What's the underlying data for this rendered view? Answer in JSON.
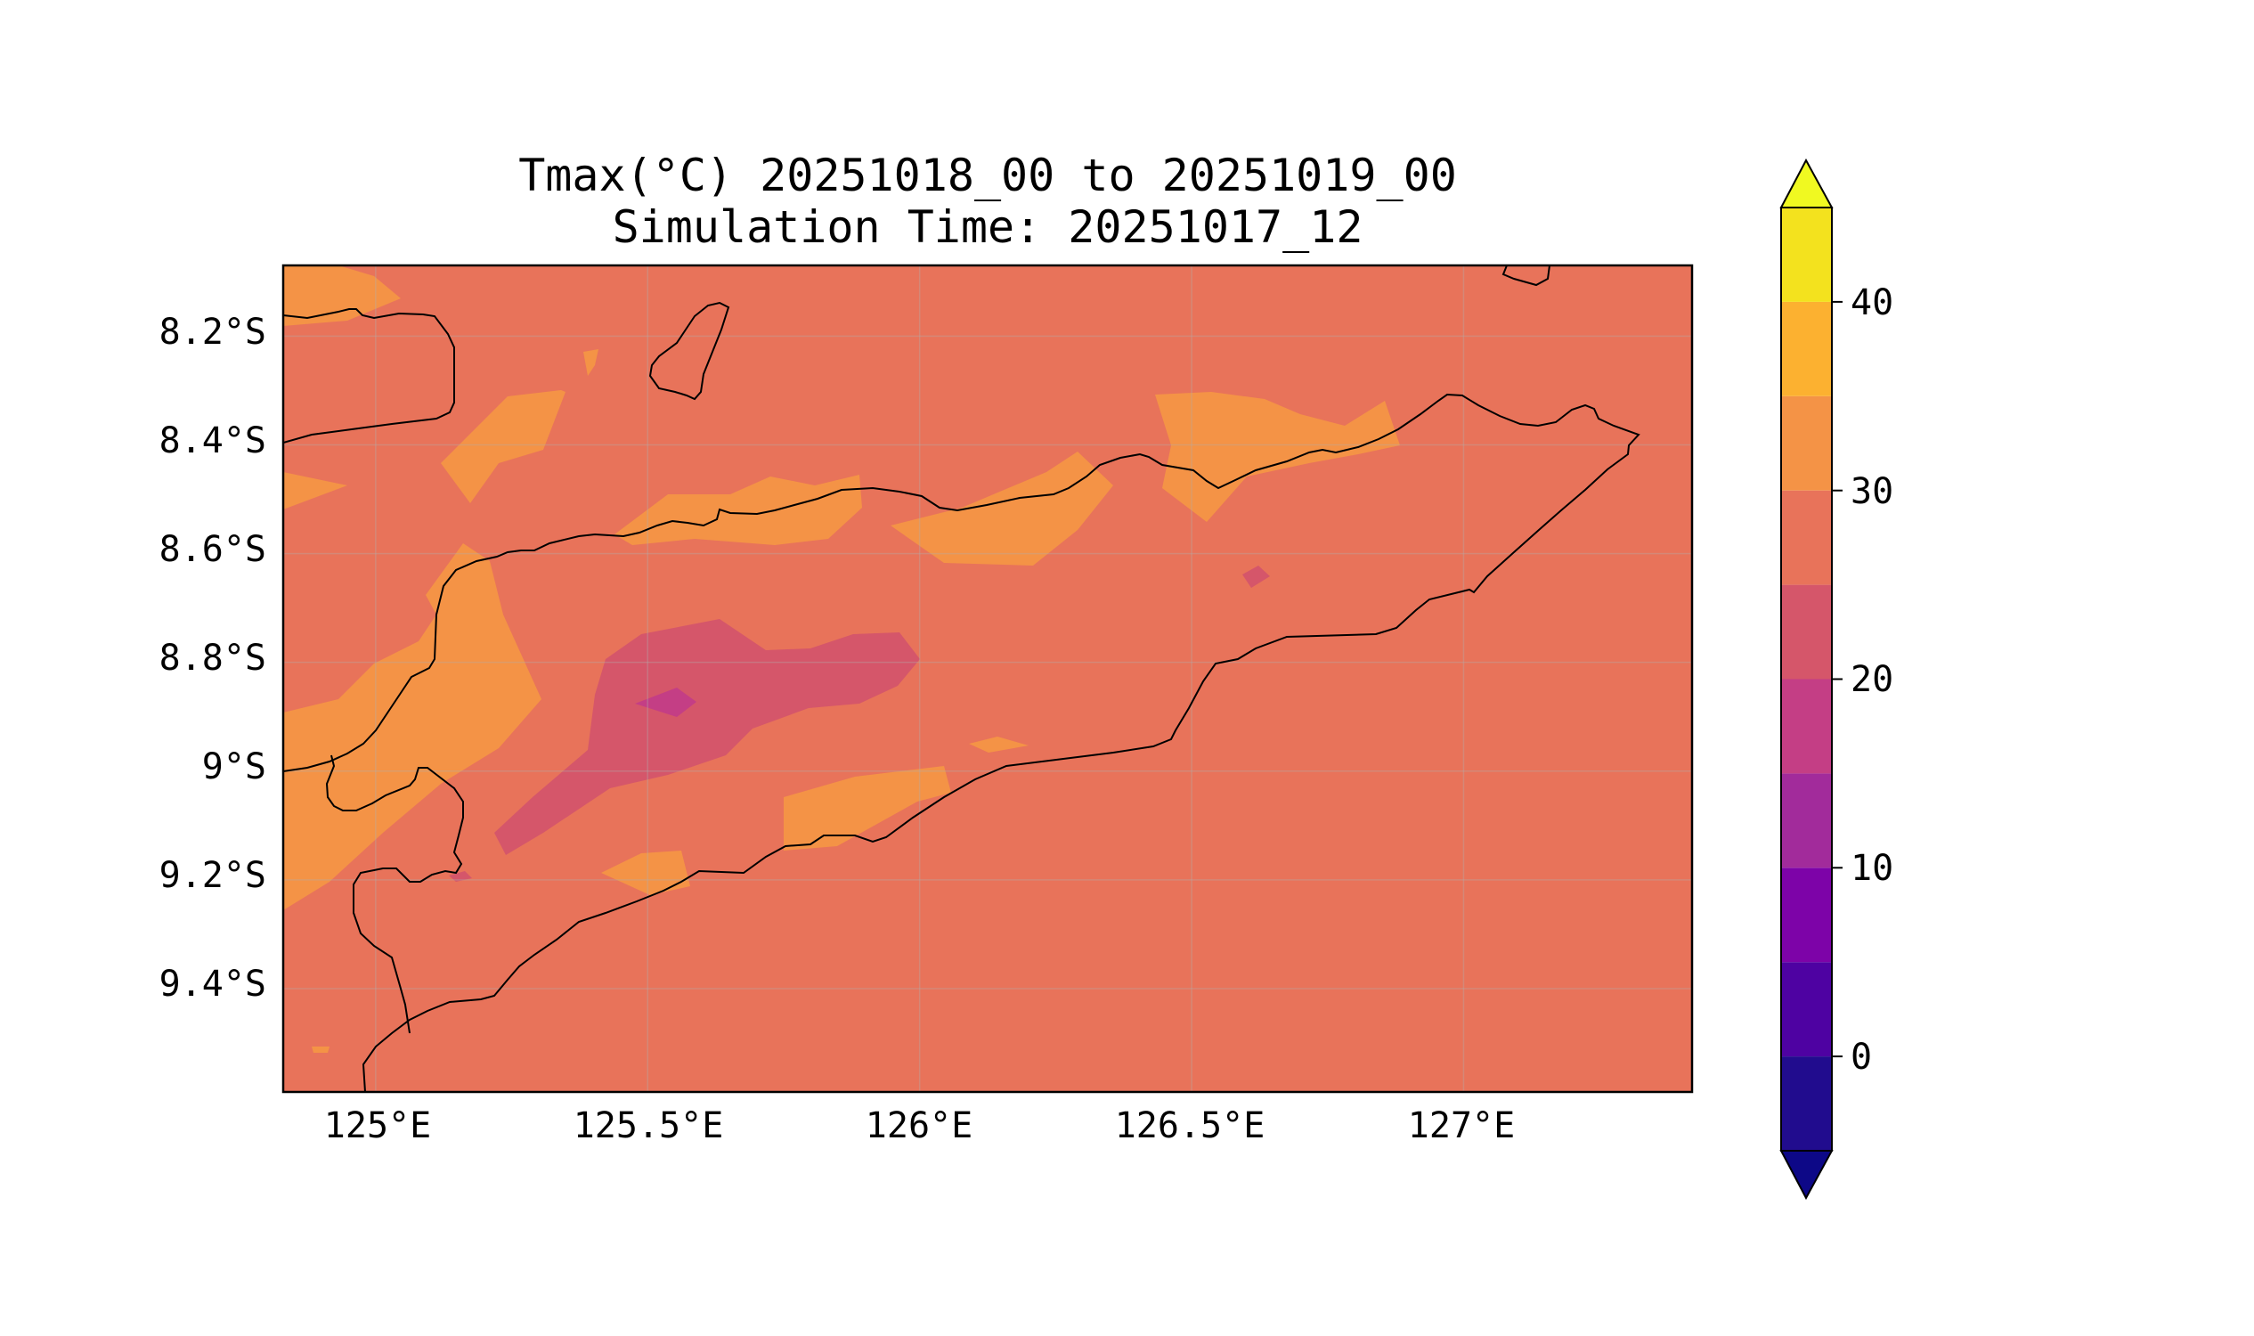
{
  "title": {
    "line1": "Tmax(°C) 20251018_00 to 20251019_00",
    "line2": "Simulation Time: 20251017_12"
  },
  "map": {
    "lat_ticks": [
      "8.2°S",
      "8.4°S",
      "8.6°S",
      "8.8°S",
      "9°S",
      "9.2°S",
      "9.4°S"
    ],
    "lon_ticks": [
      "125°E",
      "125.5°E",
      "126°E",
      "126.5°E",
      "127°E"
    ],
    "lat_values": [
      -8.2,
      -8.4,
      -8.6,
      -8.8,
      -9.0,
      -9.2,
      -9.4
    ],
    "lon_values": [
      125.0,
      125.5,
      126.0,
      126.5,
      127.0
    ],
    "lon_range": [
      124.83,
      127.42
    ],
    "lat_range": [
      -9.59,
      -8.07
    ],
    "gridlines": true,
    "coastlines": true,
    "background_class": "25-30",
    "regions": [
      {
        "class": "30-35",
        "area": "central north coast / inland Timor"
      },
      {
        "class": "20-25",
        "area": "central-west Timor highlands"
      },
      {
        "class": "15-20",
        "area": "small patch near 125.55°E 8.9°S"
      }
    ]
  },
  "colorbar": {
    "ticks": [
      "0",
      "10",
      "20",
      "30",
      "40"
    ],
    "tick_values": [
      0,
      10,
      20,
      30,
      40
    ],
    "range": [
      -5,
      45
    ],
    "extend": "both",
    "levels": [
      -5,
      0,
      5,
      10,
      15,
      20,
      25,
      30,
      35,
      40,
      45
    ],
    "colors": [
      "#210c8e",
      "#4e02a2",
      "#7d03a8",
      "#a22b9b",
      "#c43e85",
      "#d5566a",
      "#e8735a",
      "#f49346",
      "#fcb130",
      "#f3e21e"
    ],
    "under_color": "#0d0887",
    "over_color": "#f0f921"
  }
}
